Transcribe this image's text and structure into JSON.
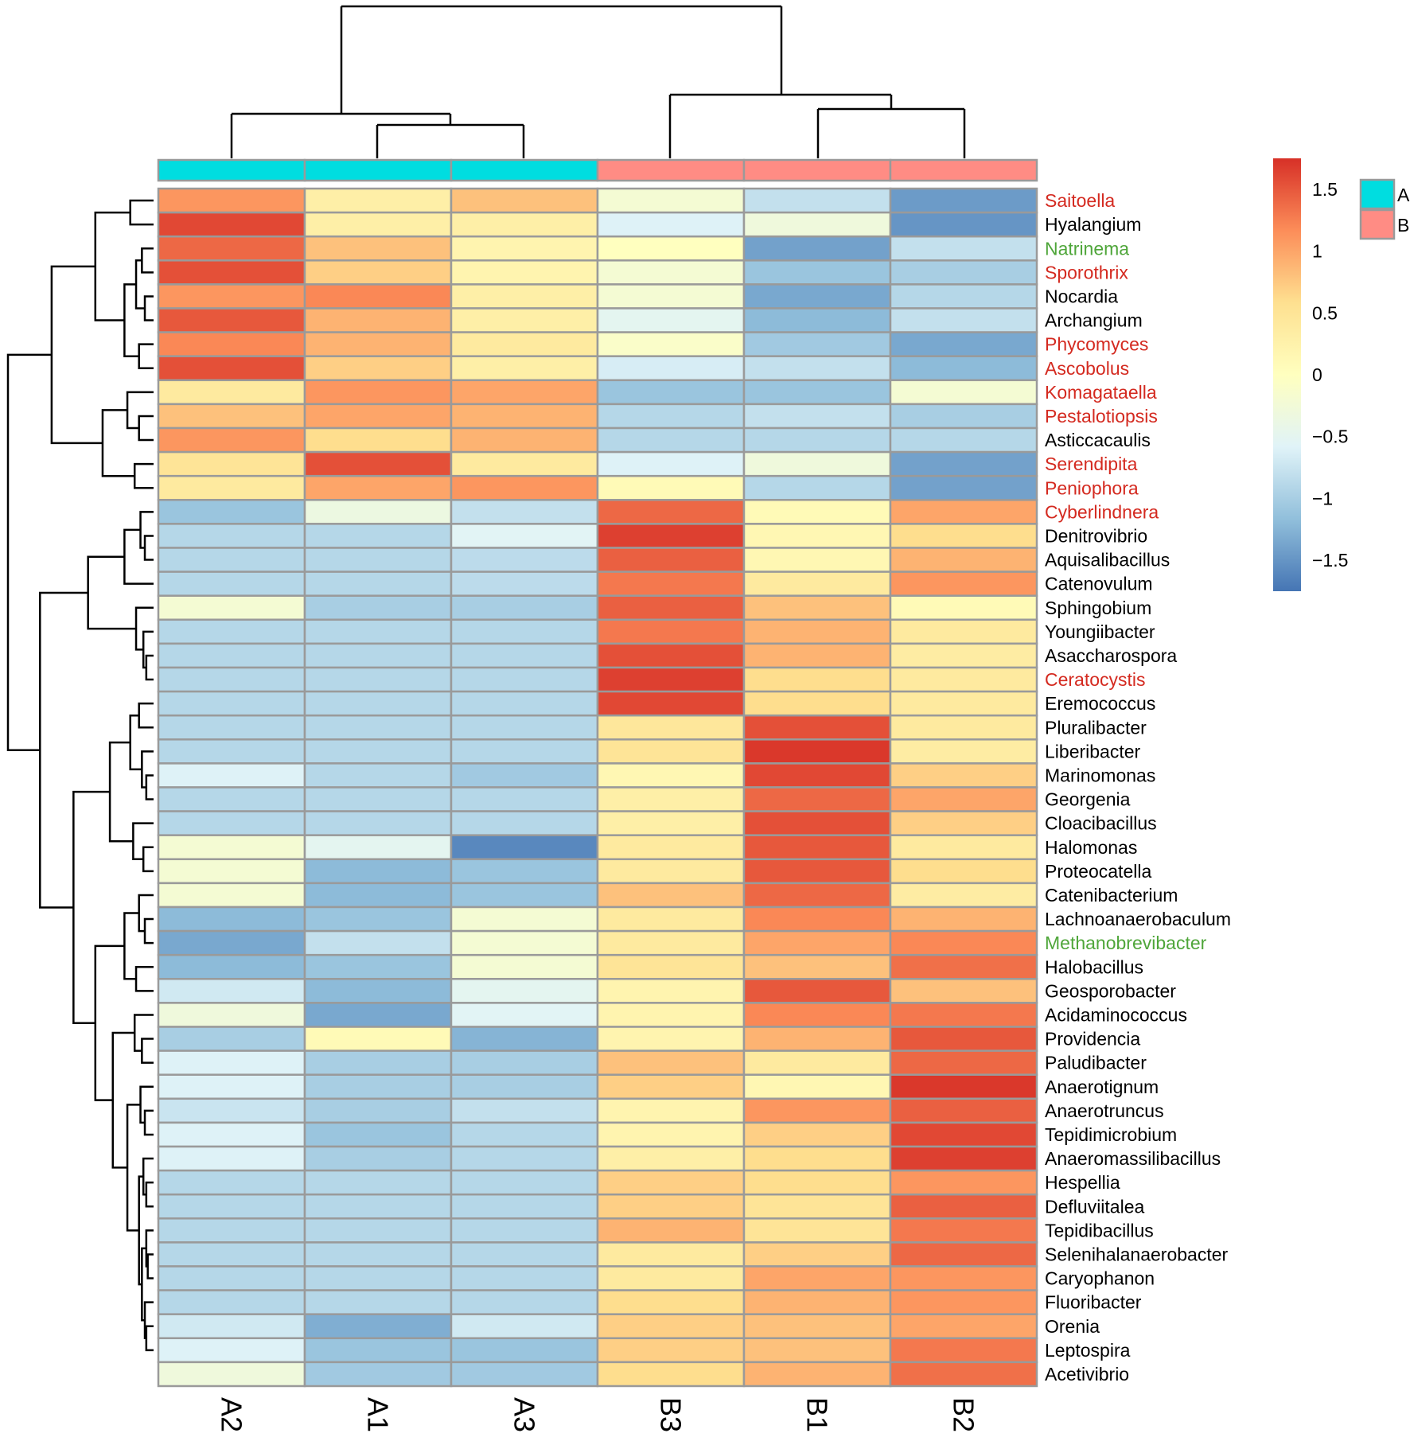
{
  "chart_data": {
    "type": "heatmap",
    "title": "",
    "columns": [
      "A2",
      "A1",
      "A3",
      "B3",
      "B1",
      "B2"
    ],
    "column_groups": [
      "A",
      "A",
      "A",
      "B",
      "B",
      "B"
    ],
    "group_legend": [
      {
        "name": "A",
        "color": "#00dde0"
      },
      {
        "name": "B",
        "color": "#ff8c84"
      }
    ],
    "colorbar": {
      "min": -1.75,
      "max": 1.75,
      "ticks": [
        1.5,
        1,
        0.5,
        0,
        -0.5,
        -1,
        -1.5
      ],
      "tick_labels": [
        "1.5",
        "1",
        "0.5",
        "0",
        "−0.5",
        "−1",
        "−1.5"
      ],
      "stops": [
        "#4575b4",
        "#91bfdb",
        "#e0f3f8",
        "#ffffbf",
        "#fee090",
        "#fc8d59",
        "#d73027"
      ]
    },
    "label_colors": {
      "black": "#000000",
      "red": "#d42a20",
      "green": "#4fa63a"
    },
    "rows": [
      {
        "name": "Saitoella",
        "color": "red",
        "values": [
          1.1,
          0.3,
          0.8,
          -0.2,
          -0.8,
          -1.45
        ]
      },
      {
        "name": "Hyalangium",
        "color": "black",
        "values": [
          1.6,
          0.3,
          0.3,
          -0.6,
          -0.3,
          -1.5
        ]
      },
      {
        "name": "Natrinema",
        "color": "green",
        "values": [
          1.4,
          0.8,
          0.2,
          0.0,
          -1.4,
          -0.8
        ]
      },
      {
        "name": "Sporothrix",
        "color": "red",
        "values": [
          1.55,
          0.7,
          0.2,
          -0.2,
          -1.1,
          -1.0
        ]
      },
      {
        "name": "Nocardia",
        "color": "black",
        "values": [
          1.1,
          1.2,
          0.3,
          -0.2,
          -1.35,
          -0.9
        ]
      },
      {
        "name": "Archangium",
        "color": "black",
        "values": [
          1.5,
          0.9,
          0.3,
          -0.5,
          -1.2,
          -0.8
        ]
      },
      {
        "name": "Phycomyces",
        "color": "red",
        "values": [
          1.2,
          0.9,
          0.4,
          -0.1,
          -1.05,
          -1.35
        ]
      },
      {
        "name": "Ascobolus",
        "color": "red",
        "values": [
          1.55,
          0.7,
          0.3,
          -0.65,
          -0.8,
          -1.2
        ]
      },
      {
        "name": "Komagataella",
        "color": "red",
        "values": [
          0.4,
          1.1,
          1.0,
          -1.1,
          -1.1,
          -0.2
        ]
      },
      {
        "name": "Pestalotiopsis",
        "color": "red",
        "values": [
          0.8,
          1.0,
          0.9,
          -0.9,
          -0.8,
          -1.0
        ]
      },
      {
        "name": "Asticcacaulis",
        "color": "black",
        "values": [
          1.1,
          0.6,
          0.9,
          -0.9,
          -0.9,
          -0.9
        ]
      },
      {
        "name": "Serendipita",
        "color": "red",
        "values": [
          0.5,
          1.55,
          0.4,
          -0.6,
          -0.3,
          -1.4
        ]
      },
      {
        "name": "Peniophora",
        "color": "red",
        "values": [
          0.4,
          1.0,
          1.1,
          0.1,
          -0.9,
          -1.4
        ]
      },
      {
        "name": "Cyberlindnera",
        "color": "red",
        "values": [
          -1.1,
          -0.35,
          -0.8,
          1.4,
          0.1,
          1.0
        ]
      },
      {
        "name": "Denitrovibrio",
        "color": "black",
        "values": [
          -0.9,
          -0.9,
          -0.55,
          1.65,
          0.15,
          0.6
        ]
      },
      {
        "name": "Aquisalibacillus",
        "color": "black",
        "values": [
          -0.9,
          -0.9,
          -0.85,
          1.45,
          0.15,
          0.9
        ]
      },
      {
        "name": "Catenovulum",
        "color": "black",
        "values": [
          -0.9,
          -0.9,
          -0.85,
          1.3,
          0.4,
          1.1
        ]
      },
      {
        "name": "Sphingobium",
        "color": "black",
        "values": [
          -0.2,
          -1.0,
          -1.0,
          1.45,
          0.8,
          0.1
        ]
      },
      {
        "name": "Youngiibacter",
        "color": "black",
        "values": [
          -0.9,
          -0.9,
          -0.9,
          1.3,
          0.9,
          0.4
        ]
      },
      {
        "name": "Asaccharospora",
        "color": "black",
        "values": [
          -0.9,
          -0.9,
          -0.9,
          1.55,
          0.9,
          0.35
        ]
      },
      {
        "name": "Ceratocystis",
        "color": "red",
        "values": [
          -0.9,
          -0.9,
          -0.9,
          1.65,
          0.6,
          0.4
        ]
      },
      {
        "name": "Eremococcus",
        "color": "black",
        "values": [
          -0.9,
          -0.9,
          -0.9,
          1.6,
          0.6,
          0.4
        ]
      },
      {
        "name": "Pluralibacter",
        "color": "black",
        "values": [
          -0.9,
          -0.9,
          -0.9,
          0.45,
          1.55,
          0.4
        ]
      },
      {
        "name": "Liberibacter",
        "color": "black",
        "values": [
          -0.9,
          -0.9,
          -0.9,
          0.5,
          1.7,
          0.35
        ]
      },
      {
        "name": "Marinomonas",
        "color": "black",
        "values": [
          -0.6,
          -0.9,
          -1.05,
          0.15,
          1.6,
          0.7
        ]
      },
      {
        "name": "Georgenia",
        "color": "black",
        "values": [
          -0.9,
          -0.9,
          -0.9,
          0.3,
          1.4,
          1.0
        ]
      },
      {
        "name": "Cloacibacillus",
        "color": "black",
        "values": [
          -0.9,
          -0.9,
          -0.9,
          0.3,
          1.55,
          0.7
        ]
      },
      {
        "name": "Halomonas",
        "color": "black",
        "values": [
          -0.2,
          -0.5,
          -1.6,
          0.4,
          1.5,
          0.4
        ]
      },
      {
        "name": "Proteocatella",
        "color": "black",
        "values": [
          -0.2,
          -1.2,
          -1.1,
          0.4,
          1.5,
          0.6
        ]
      },
      {
        "name": "Catenibacterium",
        "color": "black",
        "values": [
          -0.2,
          -1.2,
          -1.1,
          0.8,
          1.4,
          0.35
        ]
      },
      {
        "name": "Lachnoanaerobaculum",
        "color": "black",
        "values": [
          -1.2,
          -1.1,
          -0.2,
          0.4,
          1.2,
          0.9
        ]
      },
      {
        "name": "Methanobrevibacter",
        "color": "green",
        "values": [
          -1.35,
          -0.8,
          -0.2,
          0.4,
          1.0,
          1.2
        ]
      },
      {
        "name": "Halobacillus",
        "color": "black",
        "values": [
          -1.2,
          -1.1,
          -0.2,
          0.5,
          0.8,
          1.35
        ]
      },
      {
        "name": "Geosporobacter",
        "color": "black",
        "values": [
          -0.7,
          -1.2,
          -0.5,
          0.2,
          1.5,
          0.8
        ]
      },
      {
        "name": "Acidaminococcus",
        "color": "black",
        "values": [
          -0.3,
          -1.35,
          -0.55,
          0.2,
          1.2,
          1.3
        ]
      },
      {
        "name": "Providencia",
        "color": "black",
        "values": [
          -1.0,
          0.1,
          -1.25,
          0.2,
          0.9,
          1.5
        ]
      },
      {
        "name": "Paludibacter",
        "color": "black",
        "values": [
          -0.6,
          -1.0,
          -1.0,
          0.8,
          0.4,
          1.4
        ]
      },
      {
        "name": "Anaerotignum",
        "color": "black",
        "values": [
          -0.6,
          -1.0,
          -1.0,
          0.7,
          0.15,
          1.7
        ]
      },
      {
        "name": "Anaerotruncus",
        "color": "black",
        "values": [
          -0.75,
          -1.0,
          -0.8,
          0.2,
          1.1,
          1.45
        ]
      },
      {
        "name": "Tepidimicrobium",
        "color": "black",
        "values": [
          -0.6,
          -1.1,
          -0.9,
          0.2,
          0.7,
          1.6
        ]
      },
      {
        "name": "Anaeromassilibacillus",
        "color": "black",
        "values": [
          -0.6,
          -1.0,
          -0.9,
          0.3,
          0.6,
          1.65
        ]
      },
      {
        "name": "Hespellia",
        "color": "black",
        "values": [
          -0.9,
          -0.9,
          -0.9,
          0.7,
          0.6,
          1.1
        ]
      },
      {
        "name": "Defluviitalea",
        "color": "black",
        "values": [
          -0.9,
          -0.9,
          -0.9,
          0.7,
          0.5,
          1.45
        ]
      },
      {
        "name": "Tepidibacillus",
        "color": "black",
        "values": [
          -0.9,
          -0.9,
          -0.9,
          0.9,
          0.5,
          1.3
        ]
      },
      {
        "name": "Selenihalanaerobacter",
        "color": "black",
        "values": [
          -0.9,
          -0.9,
          -0.9,
          0.4,
          0.7,
          1.4
        ]
      },
      {
        "name": "Caryophanon",
        "color": "black",
        "values": [
          -0.9,
          -0.9,
          -0.9,
          0.4,
          1.0,
          1.1
        ]
      },
      {
        "name": "Fluoribacter",
        "color": "black",
        "values": [
          -0.9,
          -0.9,
          -0.9,
          0.6,
          0.9,
          1.1
        ]
      },
      {
        "name": "Orenia",
        "color": "black",
        "values": [
          -0.7,
          -1.3,
          -0.7,
          0.7,
          0.8,
          1.0
        ]
      },
      {
        "name": "Leptospira",
        "color": "black",
        "values": [
          -0.6,
          -1.1,
          -1.1,
          0.7,
          0.8,
          1.3
        ]
      },
      {
        "name": "Acetivibrio",
        "color": "black",
        "values": [
          -0.3,
          -1.05,
          -1.05,
          0.6,
          0.9,
          1.35
        ]
      }
    ]
  }
}
